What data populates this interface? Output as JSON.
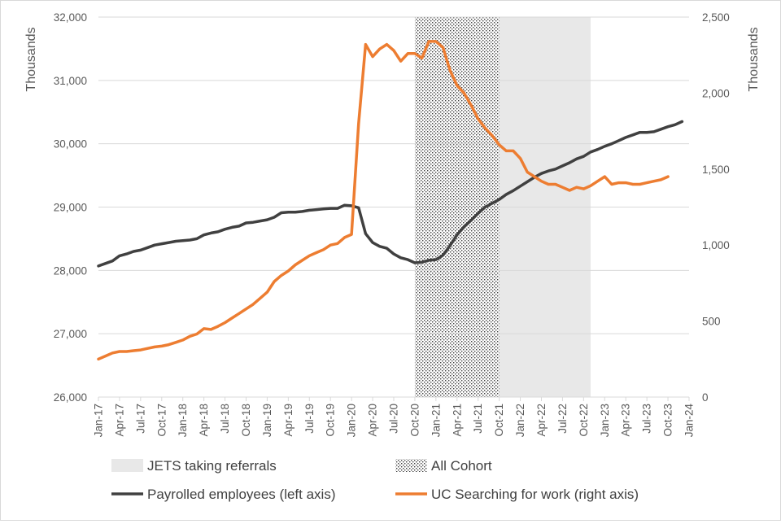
{
  "chart_data": {
    "type": "line",
    "left_axis": {
      "label": "Thousands",
      "ylim": [
        26000,
        32000
      ],
      "ticks": [
        "26,000",
        "27,000",
        "28,000",
        "29,000",
        "30,000",
        "31,000",
        "32,000"
      ]
    },
    "right_axis": {
      "label": "Thousands",
      "ylim": [
        0,
        2500
      ],
      "ticks": [
        "0",
        "500",
        "1,000",
        "1,500",
        "2,000",
        "2,500"
      ]
    },
    "x_start": "2017-01",
    "x_tick_labels": [
      "Jan-17",
      "Apr-17",
      "Jul-17",
      "Oct-17",
      "Jan-18",
      "Apr-18",
      "Jul-18",
      "Oct-18",
      "Jan-19",
      "Apr-19",
      "Jul-19",
      "Oct-19",
      "Jan-20",
      "Apr-20",
      "Jul-20",
      "Oct-20",
      "Jan-21",
      "Apr-21",
      "Jul-21",
      "Oct-21",
      "Jan-22",
      "Apr-22",
      "Jul-22",
      "Oct-22",
      "Jan-23",
      "Apr-23",
      "Jul-23",
      "Oct-23",
      "Jan-24"
    ],
    "grid": "horizontal",
    "shaded_periods": [
      {
        "name": "All Cohort",
        "start": "2020-10",
        "end": "2021-10",
        "pattern": "dots"
      },
      {
        "name": "JETS taking referrals",
        "start": "2021-10",
        "end": "2022-11",
        "color": "#e8e8e8"
      }
    ],
    "series": [
      {
        "name": "Payrolled employees (left axis)",
        "axis": "left",
        "color": "#404040",
        "values": [
          28070,
          28110,
          28150,
          28230,
          28260,
          28300,
          28320,
          28360,
          28400,
          28420,
          28440,
          28460,
          28470,
          28480,
          28500,
          28560,
          28590,
          28610,
          28650,
          28680,
          28700,
          28750,
          28760,
          28780,
          28800,
          28840,
          28910,
          28920,
          28920,
          28930,
          28950,
          28960,
          28970,
          28980,
          28980,
          29030,
          29020,
          28990,
          28580,
          28440,
          28380,
          28350,
          28260,
          28200,
          28170,
          28120,
          28130,
          28160,
          28170,
          28240,
          28390,
          28560,
          28690,
          28790,
          28900,
          29000,
          29060,
          29120,
          29200,
          29260,
          29330,
          29400,
          29470,
          29530,
          29570,
          29600,
          29650,
          29700,
          29760,
          29800,
          29870,
          29910,
          29960,
          30000,
          30050,
          30100,
          30140,
          30180,
          30180,
          30190,
          30230,
          30270,
          30300,
          30350
        ]
      },
      {
        "name": "UC Searching for work (right axis)",
        "axis": "right",
        "color": "#ed7d31",
        "values": [
          250,
          270,
          290,
          300,
          300,
          305,
          310,
          320,
          330,
          335,
          345,
          360,
          375,
          400,
          415,
          450,
          445,
          465,
          490,
          520,
          550,
          580,
          610,
          650,
          690,
          760,
          800,
          830,
          870,
          900,
          930,
          950,
          970,
          1000,
          1010,
          1050,
          1070,
          1800,
          2320,
          2240,
          2290,
          2320,
          2280,
          2210,
          2260,
          2260,
          2230,
          2340,
          2340,
          2300,
          2150,
          2050,
          2000,
          1920,
          1830,
          1770,
          1720,
          1660,
          1620,
          1620,
          1570,
          1480,
          1450,
          1420,
          1400,
          1400,
          1380,
          1360,
          1380,
          1370,
          1390,
          1420,
          1450,
          1400,
          1410,
          1410,
          1400,
          1400,
          1410,
          1420,
          1430,
          1450
        ]
      }
    ],
    "legend": {
      "placement": "bottom",
      "items": [
        {
          "label": "JETS taking referrals",
          "kind": "fill"
        },
        {
          "label": "All Cohort",
          "kind": "pattern"
        },
        {
          "label": "Payrolled employees (left axis)",
          "kind": "line",
          "color": "#404040"
        },
        {
          "label": "UC Searching for work (right axis)",
          "kind": "line",
          "color": "#ed7d31"
        }
      ]
    }
  }
}
